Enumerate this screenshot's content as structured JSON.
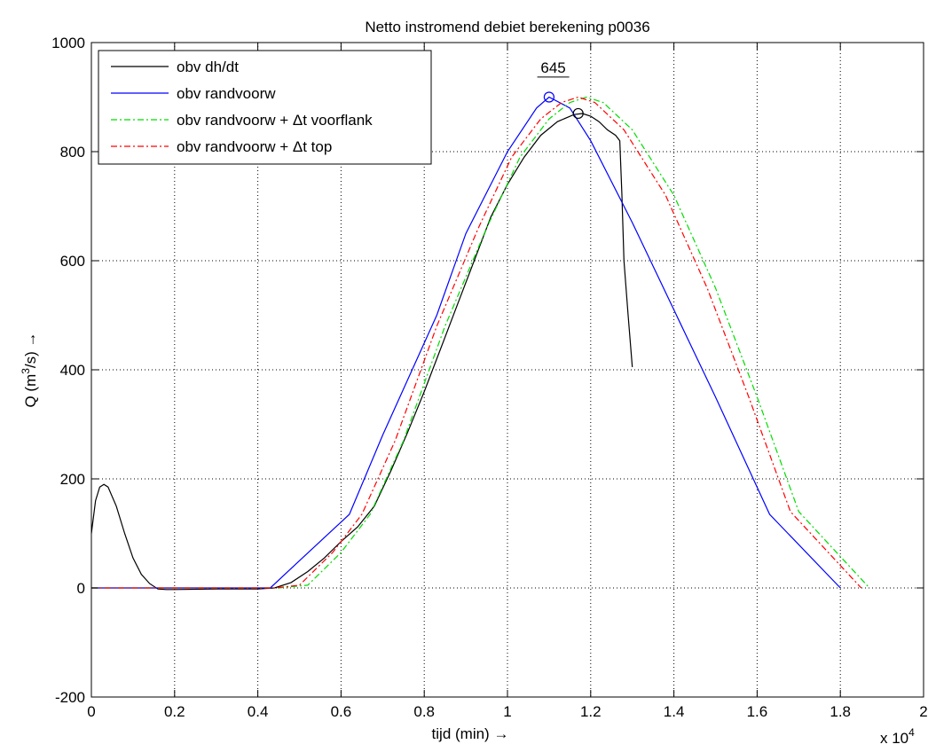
{
  "chart_data": {
    "type": "line",
    "title": "Netto instromend debiet berekening p0036",
    "xlabel": "tijd (min) →",
    "ylabel_prefix": "Q (m",
    "ylabel_sup": "3",
    "ylabel_suffix": "/s) →",
    "x_exponent_base": "x 10",
    "x_exponent_power": "4",
    "xlim": [
      0,
      20000
    ],
    "ylim": [
      -200,
      1000
    ],
    "x_ticks": [
      0,
      2000,
      4000,
      6000,
      8000,
      10000,
      12000,
      14000,
      16000,
      18000,
      20000
    ],
    "x_tick_labels": [
      "0",
      "0.2",
      "0.4",
      "0.6",
      "0.8",
      "1",
      "1.2",
      "1.4",
      "1.6",
      "1.8",
      "2"
    ],
    "y_ticks": [
      -200,
      0,
      200,
      400,
      600,
      800,
      1000
    ],
    "y_tick_labels": [
      "-200",
      "0",
      "200",
      "400",
      "600",
      "800",
      "1000"
    ],
    "grid": true,
    "legend_position": "top-left",
    "annotation": {
      "text": "645",
      "x": 11100,
      "y": 945
    },
    "series": [
      {
        "name": "obv dh/dt",
        "color": "#000000",
        "dash": "",
        "x": [
          0,
          100,
          200,
          300,
          400,
          600,
          800,
          1000,
          1200,
          1400,
          1600,
          1800,
          2000,
          3000,
          4000,
          4400,
          4800,
          5200,
          5600,
          6000,
          6400,
          6800,
          7200,
          7600,
          8000,
          8400,
          8800,
          9200,
          9600,
          10000,
          10400,
          10800,
          11200,
          11600,
          11800,
          12000,
          12200,
          12400,
          12600,
          12700,
          12750,
          12800,
          12900,
          13000
        ],
        "y": [
          100,
          160,
          185,
          190,
          185,
          150,
          100,
          55,
          25,
          8,
          -2,
          -3,
          -3,
          -2,
          -2,
          0,
          10,
          30,
          55,
          85,
          112,
          150,
          215,
          285,
          360,
          440,
          520,
          600,
          680,
          740,
          790,
          830,
          855,
          868,
          870,
          865,
          855,
          840,
          830,
          820,
          720,
          600,
          500,
          405
        ]
      },
      {
        "name": "obv randvoorw",
        "color": "#0000ff",
        "dash": "",
        "x": [
          0,
          4300,
          5000,
          6200,
          7000,
          8300,
          8300,
          9000,
          10000,
          10700,
          11000,
          11500,
          12000,
          13000,
          14000,
          15000,
          16300,
          18000
        ],
        "y": [
          0,
          0,
          50,
          135,
          280,
          500,
          500,
          650,
          800,
          880,
          900,
          880,
          820,
          670,
          510,
          350,
          135,
          0
        ]
      },
      {
        "name": "obv randvoorw + Δt voorflank",
        "color": "#00dd00",
        "dash": "7 3 2 3",
        "x": [
          0,
          4500,
          5200,
          6000,
          6700,
          7500,
          8500,
          9500,
          10300,
          11000,
          11500,
          11900,
          12300,
          13000,
          14000,
          15000,
          16000,
          17000,
          18700
        ],
        "y": [
          0,
          0,
          5,
          65,
          135,
          270,
          480,
          660,
          790,
          860,
          890,
          900,
          890,
          840,
          720,
          550,
          350,
          140,
          0
        ]
      },
      {
        "name": "obv randvoorw + Δt top",
        "color": "#ff0000",
        "dash": "7 3 2 3",
        "x": [
          0,
          4400,
          5000,
          5800,
          6500,
          7300,
          8300,
          9300,
          10100,
          10800,
          11300,
          11700,
          12100,
          12800,
          13800,
          14800,
          15800,
          16800,
          18500
        ],
        "y": [
          0,
          0,
          5,
          65,
          135,
          270,
          480,
          660,
          790,
          860,
          890,
          900,
          890,
          840,
          720,
          550,
          350,
          140,
          0
        ]
      }
    ],
    "markers": [
      {
        "series": "obv randvoorw",
        "x": 11000,
        "y": 900
      },
      {
        "series": "obv dh/dt",
        "x": 11700,
        "y": 870
      }
    ]
  }
}
